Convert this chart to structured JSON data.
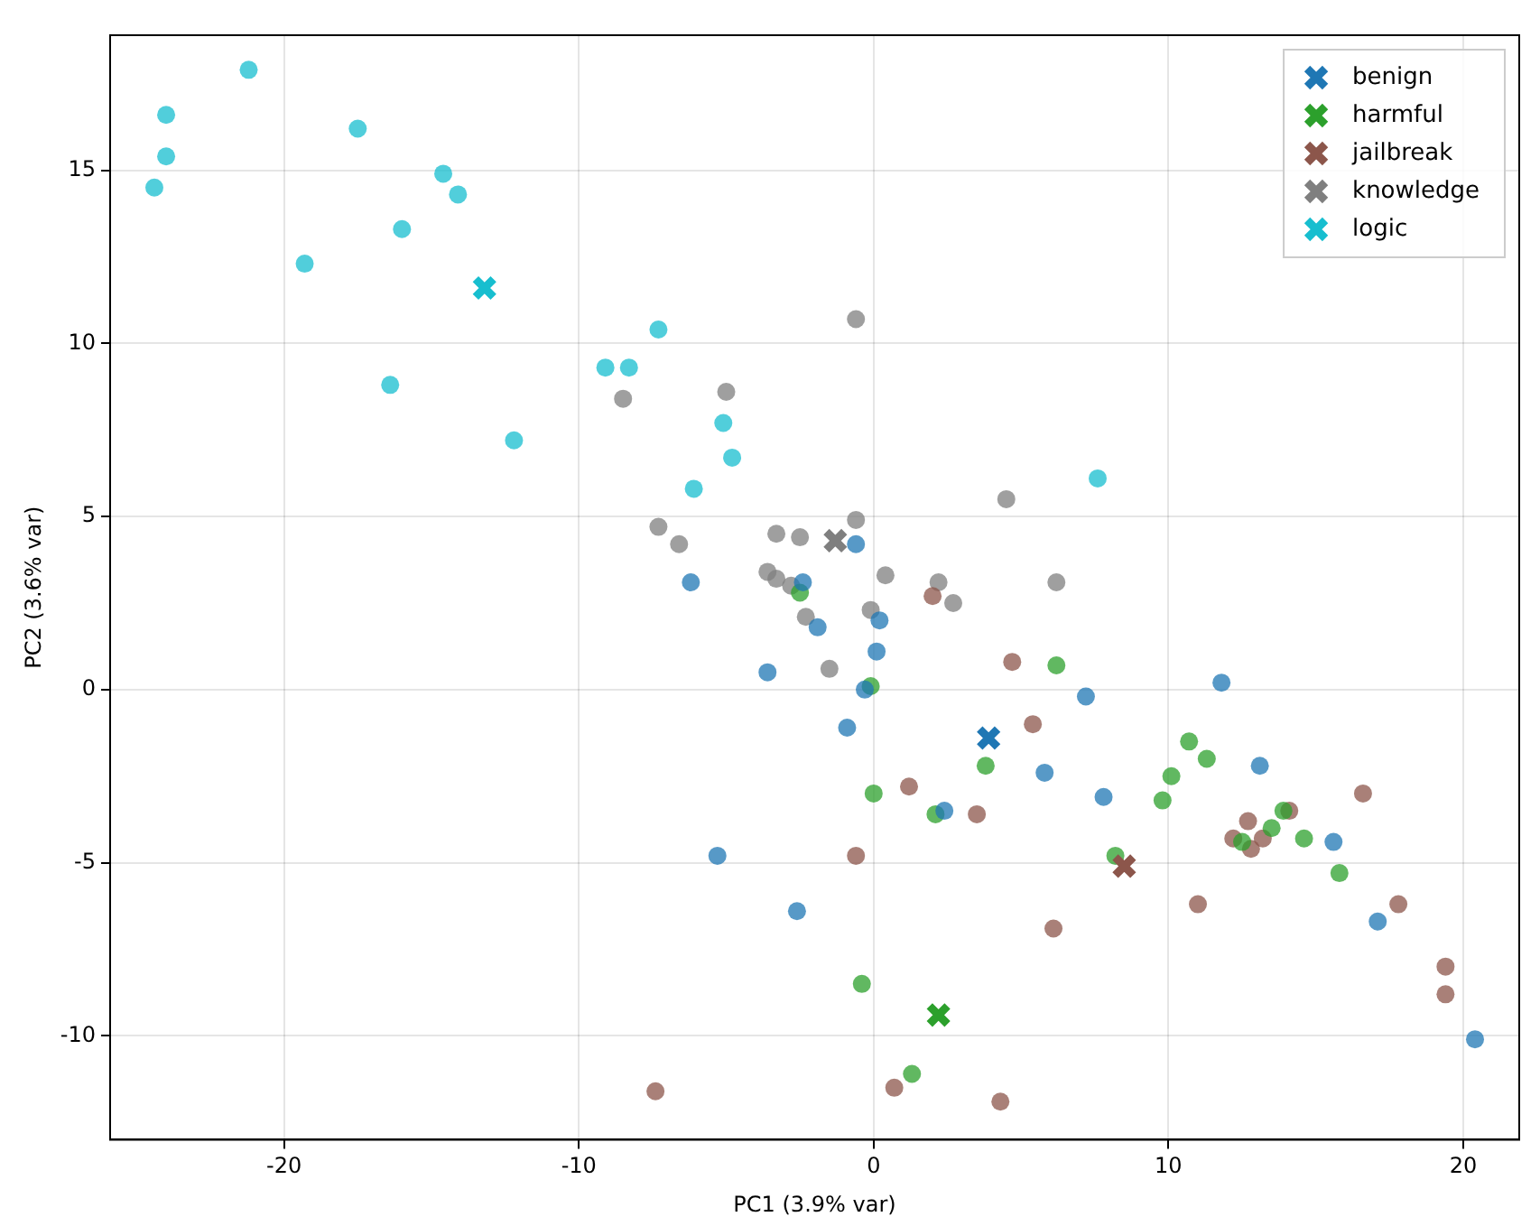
{
  "chart_data": {
    "type": "scatter",
    "xlabel": "PC1 (3.9% var)",
    "ylabel": "PC2 (3.6% var)",
    "xlim": [
      -25.9,
      21.9
    ],
    "ylim": [
      -13,
      18.9
    ],
    "xticks": [
      -20,
      -10,
      0,
      10,
      20
    ],
    "yticks": [
      -10,
      -5,
      0,
      5,
      10,
      15
    ],
    "grid": true,
    "legend": "top right",
    "marker": "circle",
    "series": [
      {
        "color": "#1f77b4",
        "x": [
          -0.6,
          -6.2,
          -2.4,
          -1.9,
          0.2,
          0.1,
          -3.6,
          -0.3,
          -0.9,
          7.2,
          11.8,
          5.8,
          7.8,
          13.1,
          2.4,
          -5.3,
          -2.6,
          15.6,
          17.1,
          20.4
        ],
        "values": [
          4.2,
          3.1,
          3.1,
          1.8,
          2.0,
          1.1,
          0.5,
          0.0,
          -1.1,
          -0.2,
          0.2,
          -2.4,
          -3.1,
          -2.2,
          -3.5,
          -4.8,
          -6.4,
          -4.4,
          -6.7,
          -10.1
        ]
      },
      {
        "color": "#2ca02c",
        "x": [
          -2.5,
          -0.1,
          6.2,
          0.0,
          3.8,
          2.1,
          10.7,
          11.3,
          10.1,
          9.8,
          13.9,
          13.5,
          14.6,
          12.5,
          15.8,
          8.2,
          -0.4,
          1.3
        ],
        "values": [
          2.8,
          0.1,
          0.7,
          -3.0,
          -2.2,
          -3.6,
          -1.5,
          -2.0,
          -2.5,
          -3.2,
          -3.5,
          -4.0,
          -4.3,
          -4.4,
          -5.3,
          -4.8,
          -8.5,
          -11.1
        ]
      },
      {
        "color": "#8c564b",
        "x": [
          2.0,
          4.7,
          5.4,
          1.2,
          3.5,
          -0.6,
          6.1,
          11.0,
          16.6,
          14.1,
          12.2,
          12.7,
          13.2,
          12.8,
          17.8,
          19.4,
          19.4,
          0.7,
          4.3,
          -7.4
        ],
        "values": [
          2.7,
          0.8,
          -1.0,
          -2.8,
          -3.6,
          -4.8,
          -6.9,
          -6.2,
          -3.0,
          -3.5,
          -4.3,
          -3.8,
          -4.3,
          -4.6,
          -6.2,
          -8.0,
          -8.8,
          -11.5,
          -11.9,
          -11.6
        ]
      },
      {
        "color": "#7f7f7f",
        "x": [
          -0.6,
          -8.5,
          -5.0,
          -7.3,
          -6.6,
          -3.3,
          -2.5,
          -0.6,
          4.5,
          -3.6,
          -3.3,
          -2.8,
          0.4,
          2.2,
          2.7,
          6.2,
          -2.3,
          -0.1,
          -1.5
        ],
        "values": [
          10.7,
          8.4,
          8.6,
          4.7,
          4.2,
          4.5,
          4.4,
          4.9,
          5.5,
          3.4,
          3.2,
          3.0,
          3.3,
          3.1,
          2.5,
          3.1,
          2.1,
          2.3,
          0.6
        ]
      },
      {
        "color": "#17becf",
        "x": [
          -21.2,
          -24.0,
          -24.0,
          -24.4,
          -17.5,
          -14.6,
          -14.1,
          -16.0,
          -19.3,
          -16.4,
          -12.2,
          -9.1,
          -8.3,
          -7.3,
          -5.1,
          -4.8,
          -6.1,
          7.6
        ],
        "values": [
          17.9,
          16.6,
          15.4,
          14.5,
          16.2,
          14.9,
          14.3,
          13.3,
          12.3,
          8.8,
          7.2,
          9.3,
          9.3,
          10.4,
          7.7,
          6.7,
          5.8,
          6.1
        ]
      },
      {
        "name": "benign",
        "color": "#1f77b4",
        "marker": "cross",
        "x": [
          3.9
        ],
        "values": [
          -1.4
        ]
      },
      {
        "name": "harmful",
        "color": "#2ca02c",
        "marker": "cross",
        "x": [
          2.2
        ],
        "values": [
          -9.4
        ]
      },
      {
        "name": "jailbreak",
        "color": "#8c564b",
        "marker": "cross",
        "x": [
          8.5
        ],
        "values": [
          -5.1
        ]
      },
      {
        "name": "knowledge",
        "color": "#7f7f7f",
        "marker": "cross",
        "x": [
          -1.3
        ],
        "values": [
          4.3
        ]
      },
      {
        "name": "logic",
        "color": "#17becf",
        "marker": "cross",
        "x": [
          -13.2
        ],
        "values": [
          11.6
        ]
      }
    ]
  }
}
